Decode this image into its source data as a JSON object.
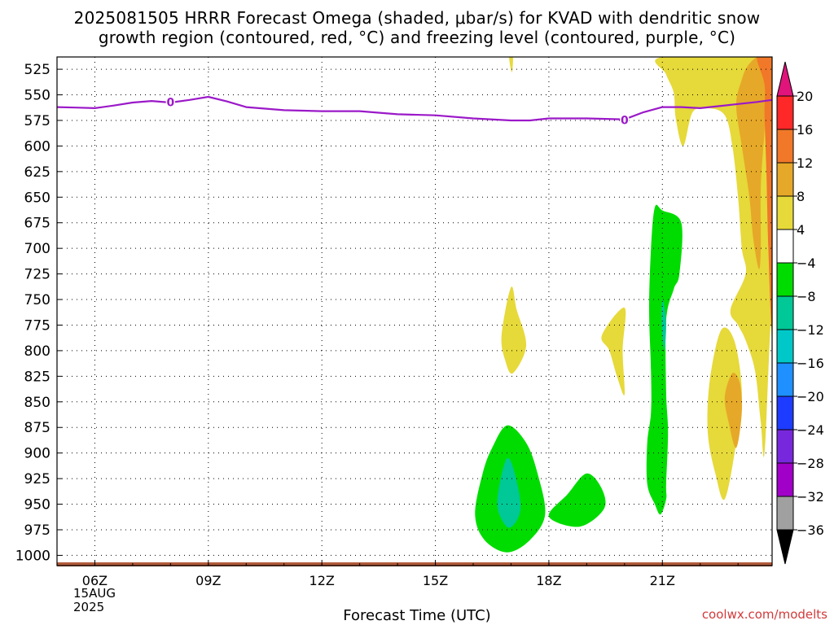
{
  "title_line_1": "2025081505 HRRR Forecast Omega (shaded, μbar/s) for KVAD with dendritic snow",
  "title_line_2": "growth region (contoured, red, °C) and freezing level (contoured, purple, °C)",
  "credit": "coolwx.com/modelts",
  "chart_data": {
    "type": "heatmap",
    "title": "2025081505 HRRR Forecast Omega (shaded, μbar/s) for KVAD with dendritic snow growth region (contoured, red, °C) and freezing level (contoured, purple, °C)",
    "xlabel": "Forecast Time (UTC)",
    "ylabel": "",
    "x_range": [
      "05Z",
      "23.9Z"
    ],
    "y_range": [
      1010,
      513
    ],
    "y_ticks": [
      525,
      550,
      575,
      600,
      625,
      650,
      675,
      700,
      725,
      750,
      775,
      800,
      825,
      850,
      875,
      900,
      925,
      950,
      975,
      1000
    ],
    "x_ticks": [
      {
        "hour": 6,
        "label": "06Z"
      },
      {
        "hour": 9,
        "label": "09Z"
      },
      {
        "hour": 12,
        "label": "12Z"
      },
      {
        "hour": 15,
        "label": "15Z"
      },
      {
        "hour": 18,
        "label": "18Z"
      },
      {
        "hour": 21,
        "label": "21Z"
      }
    ],
    "date_label": [
      "15AUG",
      "2025"
    ],
    "grid": true,
    "colorbar": {
      "placement": "right",
      "labels": [
        "20",
        "16",
        "12",
        "8",
        "4",
        "−4",
        "−8",
        "−12",
        "−16",
        "−20",
        "−24",
        "−28",
        "−32",
        "−36"
      ],
      "colors": [
        "#ff2828",
        "#f07828",
        "#e6a828",
        "#e6d93a",
        "#ffffff",
        "#00dc00",
        "#00c896",
        "#00c8c8",
        "#1e90ff",
        "#1e3cff",
        "#7828dc",
        "#a000c8",
        "#a0a0a0"
      ],
      "over_color": "#e0147a",
      "under_color": "#000000"
    },
    "freezing_level": {
      "label": "0",
      "color": "#9b19c8",
      "hours": [
        5.0,
        5.5,
        6.0,
        6.5,
        7.0,
        7.5,
        8.0,
        8.5,
        9.0,
        9.5,
        10.0,
        11.0,
        12.0,
        13.0,
        14.0,
        15.0,
        16.0,
        17.0,
        17.5,
        18.0,
        19.0,
        20.0,
        20.5,
        21.0,
        21.5,
        22.0,
        22.5,
        23.0,
        23.5,
        23.9
      ],
      "pressure": [
        562,
        562.5,
        563,
        560.5,
        557.5,
        556,
        557.5,
        555,
        552,
        556.5,
        562,
        565,
        566,
        566,
        569,
        570,
        573,
        575,
        575,
        573,
        573,
        574,
        567,
        562,
        562,
        563,
        561,
        559,
        557,
        555
      ]
    },
    "surface": {
      "color": "#b05a3a",
      "pressure": 1010
    },
    "omega_regions": [
      {
        "value": "4 to 8",
        "color": "#e6d93a",
        "points": [
          [
            21.0,
            513
          ],
          [
            21.1,
            530
          ],
          [
            21.3,
            548
          ],
          [
            21.35,
            572
          ],
          [
            21.55,
            600
          ],
          [
            21.8,
            567
          ],
          [
            22.2,
            563
          ],
          [
            22.65,
            570
          ],
          [
            22.85,
            600
          ],
          [
            23.0,
            650
          ],
          [
            23.1,
            700
          ],
          [
            23.2,
            725
          ],
          [
            22.8,
            760
          ],
          [
            23.0,
            775
          ],
          [
            23.2,
            790
          ],
          [
            23.45,
            820
          ],
          [
            23.6,
            870
          ],
          [
            23.7,
            900
          ],
          [
            23.85,
            780
          ],
          [
            23.9,
            770
          ],
          [
            23.9,
            513
          ]
        ]
      },
      {
        "value": "4 to 8",
        "color": "#e6d93a",
        "points": [
          [
            22.55,
            780
          ],
          [
            22.25,
            830
          ],
          [
            22.2,
            880
          ],
          [
            22.4,
            920
          ],
          [
            22.65,
            945
          ],
          [
            22.95,
            890
          ],
          [
            23.1,
            840
          ],
          [
            22.9,
            790
          ]
        ]
      },
      {
        "value": "8 to 12",
        "color": "#e6a828",
        "points": [
          [
            22.95,
            560
          ],
          [
            23.1,
            535
          ],
          [
            23.25,
            522
          ],
          [
            23.5,
            513
          ],
          [
            23.7,
            513
          ],
          [
            23.75,
            540
          ],
          [
            23.7,
            585
          ],
          [
            23.6,
            640
          ],
          [
            23.6,
            700
          ],
          [
            23.55,
            720
          ],
          [
            23.4,
            690
          ],
          [
            23.3,
            650
          ],
          [
            23.1,
            600
          ]
        ]
      },
      {
        "value": "12 to 16",
        "color": "#f07828",
        "points": [
          [
            23.5,
            513
          ],
          [
            23.9,
            513
          ],
          [
            23.9,
            770
          ],
          [
            23.8,
            700
          ],
          [
            23.75,
            625
          ],
          [
            23.7,
            570
          ],
          [
            23.7,
            540
          ]
        ]
      },
      {
        "value": "8 to 12",
        "color": "#e6a828",
        "points": [
          [
            22.85,
            822
          ],
          [
            22.65,
            845
          ],
          [
            22.75,
            870
          ],
          [
            22.95,
            895
          ],
          [
            23.1,
            860
          ],
          [
            23.05,
            832
          ]
        ]
      },
      {
        "value": "4 to 8",
        "color": "#e6d93a",
        "points": [
          [
            17.0,
            738
          ],
          [
            16.75,
            785
          ],
          [
            16.85,
            810
          ],
          [
            17.05,
            822
          ],
          [
            17.4,
            795
          ],
          [
            17.15,
            760
          ]
        ]
      },
      {
        "value": "4 to 8",
        "color": "#e6d93a",
        "points": [
          [
            20.0,
            758
          ],
          [
            19.4,
            785
          ],
          [
            19.6,
            800
          ],
          [
            19.8,
            825
          ],
          [
            20.0,
            843
          ],
          [
            19.95,
            800
          ]
        ]
      },
      {
        "value": "4 to 8",
        "color": "#e6d93a",
        "points": [
          [
            16.95,
            513
          ],
          [
            17.05,
            513
          ],
          [
            17.02,
            528
          ]
        ]
      },
      {
        "value": "-4 to -8",
        "color": "#00dc00",
        "points": [
          [
            20.8,
            660
          ],
          [
            21.0,
            663
          ],
          [
            21.5,
            675
          ],
          [
            21.45,
            725
          ],
          [
            21.3,
            740
          ],
          [
            21.1,
            770
          ],
          [
            21.1,
            840
          ],
          [
            21.15,
            880
          ],
          [
            21.1,
            930
          ],
          [
            21.1,
            945
          ],
          [
            20.95,
            960
          ],
          [
            20.8,
            950
          ],
          [
            20.6,
            930
          ],
          [
            20.6,
            890
          ],
          [
            20.7,
            860
          ],
          [
            20.7,
            820
          ],
          [
            20.65,
            760
          ],
          [
            20.7,
            700
          ]
        ]
      },
      {
        "value": "-8 to -12",
        "color": "#00c896",
        "points": [
          [
            21.0,
            750
          ],
          [
            21.1,
            772
          ],
          [
            21.05,
            800
          ],
          [
            20.98,
            775
          ]
        ]
      },
      {
        "value": "-4 to -8",
        "color": "#00dc00",
        "points": [
          [
            16.9,
            873
          ],
          [
            16.5,
            895
          ],
          [
            16.25,
            920
          ],
          [
            16.05,
            960
          ],
          [
            16.3,
            985
          ],
          [
            16.9,
            997
          ],
          [
            17.5,
            985
          ],
          [
            17.9,
            960
          ],
          [
            17.7,
            920
          ],
          [
            17.4,
            890
          ]
        ]
      },
      {
        "value": "-8 to -12",
        "color": "#00c896",
        "points": [
          [
            16.9,
            905
          ],
          [
            16.7,
            930
          ],
          [
            16.65,
            955
          ],
          [
            16.95,
            973
          ],
          [
            17.25,
            955
          ],
          [
            17.1,
            920
          ]
        ]
      },
      {
        "value": "-4 to -8",
        "color": "#00dc00",
        "points": [
          [
            19.0,
            920
          ],
          [
            18.5,
            940
          ],
          [
            18.0,
            962
          ],
          [
            18.8,
            972
          ],
          [
            19.45,
            955
          ],
          [
            19.4,
            935
          ]
        ]
      }
    ]
  }
}
